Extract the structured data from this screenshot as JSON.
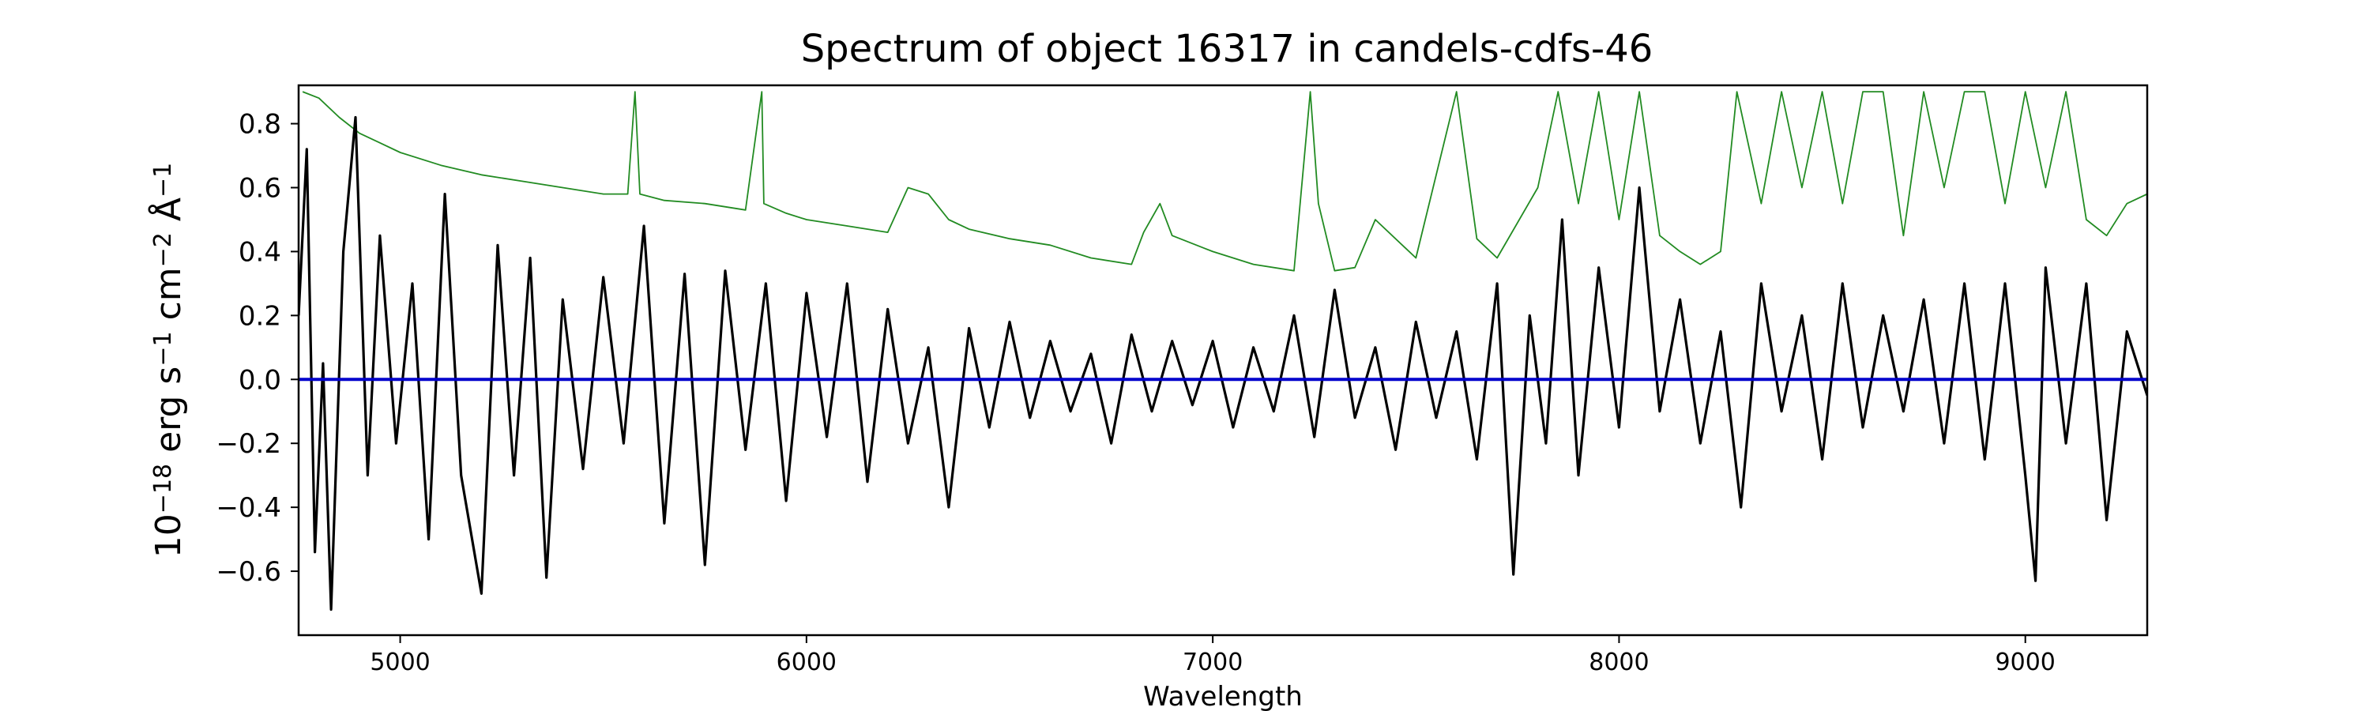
{
  "chart_data": {
    "type": "line",
    "title": "Spectrum of object 16317 in candels-cdfs-46",
    "xlabel": "Wavelength",
    "ylabel": {
      "parts": [
        {
          "text": "10",
          "sup": false
        },
        {
          "text": "−18",
          "sup": true
        },
        {
          "text": " erg s",
          "sup": false
        },
        {
          "text": "−1",
          "sup": true
        },
        {
          "text": " cm",
          "sup": false
        },
        {
          "text": "−2",
          "sup": true
        },
        {
          "text": " Å",
          "sup": false
        },
        {
          "text": "−1",
          "sup": true
        }
      ]
    },
    "xlim": [
      4750,
      9300
    ],
    "ylim": [
      -0.8,
      0.92
    ],
    "x_ticks": [
      5000,
      6000,
      7000,
      8000,
      9000
    ],
    "x_tick_labels": [
      "5000",
      "6000",
      "7000",
      "8000",
      "9000"
    ],
    "y_ticks": [
      -0.6,
      -0.4,
      -0.2,
      0.0,
      0.2,
      0.4,
      0.6,
      0.8
    ],
    "y_tick_labels": [
      "−0.6",
      "−0.4",
      "−0.2",
      "0.0",
      "0.2",
      "0.4",
      "0.6",
      "0.8"
    ],
    "grid": false,
    "legend": "none",
    "series": [
      {
        "color": "#228B22",
        "role": "error",
        "x": [
          4760,
          4800,
          4850,
          4900,
          4950,
          5000,
          5100,
          5200,
          5300,
          5400,
          5500,
          5560,
          5578,
          5590,
          5650,
          5750,
          5850,
          5890,
          5895,
          5950,
          6000,
          6100,
          6200,
          6250,
          6300,
          6350,
          6400,
          6500,
          6600,
          6700,
          6800,
          6830,
          6870,
          6900,
          7000,
          7100,
          7200,
          7240,
          7260,
          7300,
          7350,
          7400,
          7500,
          7600,
          7650,
          7700,
          7800,
          7850,
          7900,
          7950,
          8000,
          8050,
          8100,
          8150,
          8200,
          8250,
          8290,
          8350,
          8400,
          8450,
          8500,
          8550,
          8600,
          8650,
          8700,
          8750,
          8800,
          8850,
          8900,
          8950,
          9000,
          9050,
          9100,
          9150,
          9200,
          9250,
          9300
        ],
        "y": [
          0.9,
          0.88,
          0.82,
          0.77,
          0.74,
          0.71,
          0.67,
          0.64,
          0.62,
          0.6,
          0.58,
          0.58,
          0.9,
          0.58,
          0.56,
          0.55,
          0.53,
          0.9,
          0.55,
          0.52,
          0.5,
          0.48,
          0.46,
          0.6,
          0.58,
          0.5,
          0.47,
          0.44,
          0.42,
          0.38,
          0.36,
          0.46,
          0.55,
          0.45,
          0.4,
          0.36,
          0.34,
          0.9,
          0.55,
          0.34,
          0.35,
          0.5,
          0.38,
          0.9,
          0.44,
          0.38,
          0.6,
          0.9,
          0.55,
          0.9,
          0.5,
          0.9,
          0.45,
          0.4,
          0.36,
          0.4,
          0.9,
          0.55,
          0.9,
          0.6,
          0.9,
          0.55,
          0.9,
          0.9,
          0.45,
          0.9,
          0.6,
          0.9,
          0.9,
          0.55,
          0.9,
          0.6,
          0.9,
          0.5,
          0.45,
          0.55,
          0.58
        ]
      },
      {
        "color": "#000000",
        "role": "flux",
        "x": [
          4750,
          4770,
          4790,
          4810,
          4830,
          4860,
          4890,
          4920,
          4950,
          4990,
          5030,
          5070,
          5110,
          5150,
          5200,
          5240,
          5280,
          5320,
          5360,
          5400,
          5450,
          5500,
          5550,
          5600,
          5650,
          5700,
          5750,
          5800,
          5850,
          5900,
          5950,
          6000,
          6050,
          6100,
          6150,
          6200,
          6250,
          6300,
          6350,
          6400,
          6450,
          6500,
          6550,
          6600,
          6650,
          6700,
          6750,
          6800,
          6850,
          6900,
          6950,
          7000,
          7050,
          7100,
          7150,
          7200,
          7250,
          7300,
          7350,
          7400,
          7450,
          7500,
          7550,
          7600,
          7650,
          7700,
          7740,
          7780,
          7820,
          7860,
          7900,
          7950,
          8000,
          8050,
          8100,
          8150,
          8200,
          8250,
          8300,
          8350,
          8400,
          8450,
          8500,
          8550,
          8600,
          8650,
          8700,
          8750,
          8800,
          8850,
          8900,
          8950,
          9000,
          9025,
          9050,
          9100,
          9150,
          9200,
          9250,
          9300
        ],
        "y": [
          0.2,
          0.72,
          -0.54,
          0.05,
          -0.72,
          0.4,
          0.82,
          -0.3,
          0.45,
          -0.2,
          0.3,
          -0.5,
          0.58,
          -0.3,
          -0.67,
          0.42,
          -0.3,
          0.38,
          -0.62,
          0.25,
          -0.28,
          0.32,
          -0.2,
          0.48,
          -0.45,
          0.33,
          -0.58,
          0.34,
          -0.22,
          0.3,
          -0.38,
          0.27,
          -0.18,
          0.3,
          -0.32,
          0.22,
          -0.2,
          0.1,
          -0.4,
          0.16,
          -0.15,
          0.18,
          -0.12,
          0.12,
          -0.1,
          0.08,
          -0.2,
          0.14,
          -0.1,
          0.12,
          -0.08,
          0.12,
          -0.15,
          0.1,
          -0.1,
          0.2,
          -0.18,
          0.28,
          -0.12,
          0.1,
          -0.22,
          0.18,
          -0.12,
          0.15,
          -0.25,
          0.3,
          -0.61,
          0.2,
          -0.2,
          0.5,
          -0.3,
          0.35,
          -0.15,
          0.6,
          -0.1,
          0.25,
          -0.2,
          0.15,
          -0.4,
          0.3,
          -0.1,
          0.2,
          -0.25,
          0.3,
          -0.15,
          0.2,
          -0.1,
          0.25,
          -0.2,
          0.3,
          -0.25,
          0.3,
          -0.3,
          -0.63,
          0.35,
          -0.2,
          0.3,
          -0.44,
          0.15,
          -0.05
        ]
      },
      {
        "color": "#0000CC",
        "role": "model",
        "x": [
          4750,
          9300
        ],
        "y": [
          0.0,
          0.0
        ]
      }
    ]
  }
}
